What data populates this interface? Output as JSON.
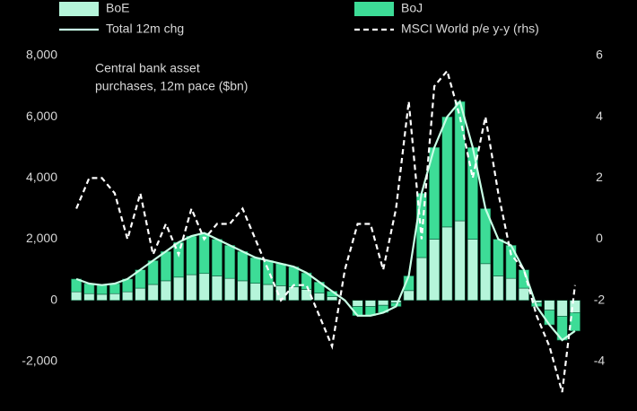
{
  "chart_data": {
    "type": "bar",
    "stacked": true,
    "annotation_lines": [
      "Central bank asset",
      "purchases, 12m pace ($bn)"
    ],
    "categories": [
      null,
      null,
      null,
      null,
      null,
      null,
      null,
      null,
      null,
      null,
      null,
      null,
      null,
      null,
      null,
      null,
      null,
      null,
      null,
      null,
      null,
      null,
      null,
      null,
      null,
      null,
      null,
      null,
      null,
      null,
      null,
      null,
      null,
      null,
      null,
      null,
      null,
      null,
      null,
      null
    ],
    "series": [
      {
        "name": "BoE",
        "color": "#b5f5da",
        "values": [
          280,
          220,
          200,
          220,
          280,
          400,
          520,
          640,
          760,
          840,
          880,
          800,
          720,
          640,
          560,
          520,
          480,
          440,
          360,
          240,
          120,
          0,
          -200,
          -200,
          -160,
          -80,
          320,
          1400,
          2000,
          2400,
          2600,
          2000,
          1200,
          800,
          720,
          400,
          -80,
          -320,
          -520,
          -400
        ]
      },
      {
        "name": "BoJ",
        "color": "#3ddc97",
        "values": [
          420,
          330,
          300,
          330,
          420,
          600,
          780,
          960,
          1140,
          1260,
          1320,
          1200,
          1080,
          960,
          840,
          780,
          720,
          660,
          540,
          360,
          180,
          0,
          -300,
          -300,
          -240,
          -120,
          480,
          2100,
          3000,
          3600,
          3900,
          3000,
          1800,
          1200,
          1080,
          600,
          -120,
          -480,
          -780,
          -600
        ]
      },
      {
        "name": "Total 12m chg",
        "type": "line",
        "color": "#c8ffe6",
        "values": [
          700,
          550,
          500,
          550,
          700,
          1000,
          1300,
          1600,
          1900,
          2100,
          2200,
          2000,
          1800,
          1600,
          1400,
          1300,
          1200,
          1100,
          900,
          600,
          300,
          0,
          -500,
          -500,
          -400,
          -200,
          800,
          3500,
          5000,
          6000,
          6500,
          5000,
          3000,
          2000,
          1800,
          1000,
          -200,
          -800,
          -1300,
          -1000
        ]
      },
      {
        "name": "MSCI World p/e y-y (rhs)",
        "type": "line",
        "dashed": true,
        "axis": "y2",
        "color": "#ffffff",
        "values": [
          1,
          2,
          2,
          1.5,
          0,
          1.5,
          -0.5,
          0.5,
          -0.5,
          1,
          0,
          0.5,
          0.5,
          1,
          0,
          -1,
          -2,
          -1.5,
          -1.5,
          -2.5,
          -3.5,
          -1,
          0.5,
          0.5,
          -1,
          1,
          4.5,
          0,
          5,
          5.5,
          4,
          2,
          4,
          1.5,
          -0.5,
          -1,
          -2.5,
          -3.5,
          -5,
          -1.5
        ]
      }
    ],
    "ylim": [
      -3000,
      8000
    ],
    "yticks": [
      {
        "value": -2000,
        "label": "-2,000"
      },
      0,
      {
        "value": 2000,
        "label": "2,000"
      },
      {
        "value": 4000,
        "label": "4,000"
      },
      {
        "value": 6000,
        "label": "6,000"
      },
      {
        "value": 8000,
        "label": "8,000"
      }
    ],
    "y2lim": [
      -5,
      6
    ],
    "y2ticks": [
      -4,
      -2,
      0,
      2,
      4,
      6
    ]
  }
}
